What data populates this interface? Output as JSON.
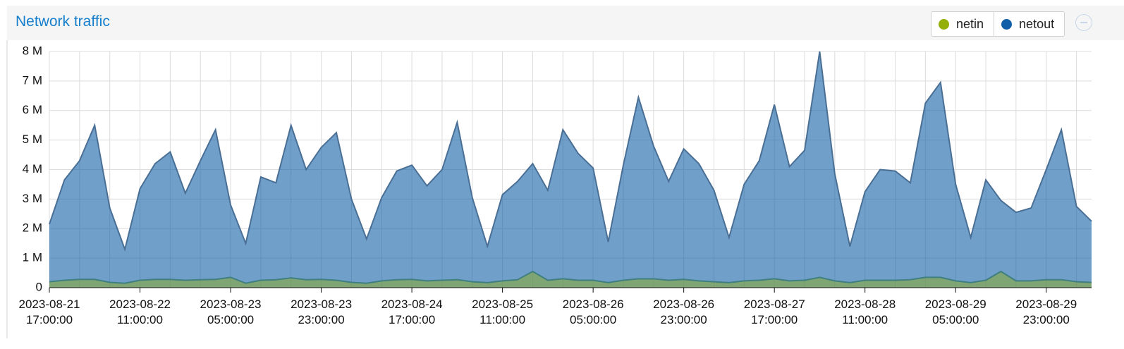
{
  "chart_data": {
    "type": "area",
    "title": "Network traffic",
    "categories": [
      "2023-08-21 17:00:00",
      null,
      null,
      null,
      null,
      null,
      "2023-08-22 11:00:00",
      null,
      null,
      null,
      null,
      null,
      "2023-08-23 05:00:00",
      null,
      null,
      null,
      null,
      null,
      "2023-08-23 23:00:00",
      null,
      null,
      null,
      null,
      null,
      "2023-08-24 17:00:00",
      null,
      null,
      null,
      null,
      null,
      "2023-08-25 11:00:00",
      null,
      null,
      null,
      null,
      null,
      "2023-08-26 05:00:00",
      null,
      null,
      null,
      null,
      null,
      "2023-08-26 23:00:00",
      null,
      null,
      null,
      null,
      null,
      "2023-08-27 17:00:00",
      null,
      null,
      null,
      null,
      null,
      "2023-08-28 11:00:00",
      null,
      null,
      null,
      null,
      null,
      "2023-08-29 05:00:00",
      null,
      null,
      null,
      null,
      null,
      "2023-08-29 23:00:00",
      null,
      null,
      null
    ],
    "series": [
      {
        "name": "netout",
        "color": "#115fa6",
        "values": [
          2.15,
          3.65,
          4.3,
          5.5,
          2.7,
          1.3,
          3.35,
          4.2,
          4.6,
          3.2,
          4.3,
          5.35,
          2.8,
          1.5,
          3.75,
          3.55,
          5.5,
          4.0,
          4.75,
          5.25,
          3.0,
          1.65,
          3.05,
          3.95,
          4.15,
          3.45,
          4.0,
          5.6,
          3.05,
          1.4,
          3.15,
          3.6,
          4.2,
          3.3,
          5.35,
          4.55,
          4.05,
          1.55,
          4.15,
          6.45,
          4.8,
          3.6,
          4.7,
          4.2,
          3.3,
          1.7,
          3.5,
          4.3,
          6.2,
          4.1,
          4.65,
          8.0,
          3.85,
          1.4,
          3.25,
          4.0,
          3.95,
          3.55,
          6.25,
          6.95,
          3.5,
          1.7,
          3.65,
          2.95,
          2.55,
          2.7,
          4.0,
          5.35,
          2.75,
          2.25
        ]
      },
      {
        "name": "netin",
        "color": "#94ae0a",
        "values": [
          0.2,
          0.25,
          0.28,
          0.28,
          0.18,
          0.15,
          0.25,
          0.28,
          0.28,
          0.25,
          0.27,
          0.28,
          0.35,
          0.15,
          0.25,
          0.27,
          0.33,
          0.27,
          0.28,
          0.25,
          0.18,
          0.15,
          0.23,
          0.27,
          0.28,
          0.23,
          0.25,
          0.27,
          0.2,
          0.17,
          0.23,
          0.27,
          0.55,
          0.25,
          0.3,
          0.25,
          0.25,
          0.17,
          0.25,
          0.3,
          0.3,
          0.25,
          0.28,
          0.23,
          0.2,
          0.17,
          0.23,
          0.25,
          0.3,
          0.23,
          0.25,
          0.35,
          0.23,
          0.17,
          0.25,
          0.25,
          0.25,
          0.27,
          0.35,
          0.35,
          0.23,
          0.17,
          0.25,
          0.55,
          0.23,
          0.23,
          0.27,
          0.27,
          0.2,
          0.18
        ]
      }
    ],
    "legend_order": [
      "netin",
      "netout"
    ],
    "ylim": [
      0,
      8
    ],
    "yticks": [
      0,
      {
        "value": 1,
        "label": "1 M"
      },
      {
        "value": 2,
        "label": "2 M"
      },
      {
        "value": 3,
        "label": "3 M"
      },
      {
        "value": 4,
        "label": "4 M"
      },
      {
        "value": 5,
        "label": "5 M"
      },
      {
        "value": 6,
        "label": "6 M"
      },
      {
        "value": 7,
        "label": "7 M"
      },
      {
        "value": 8,
        "label": "8 M"
      }
    ],
    "grid": true
  }
}
